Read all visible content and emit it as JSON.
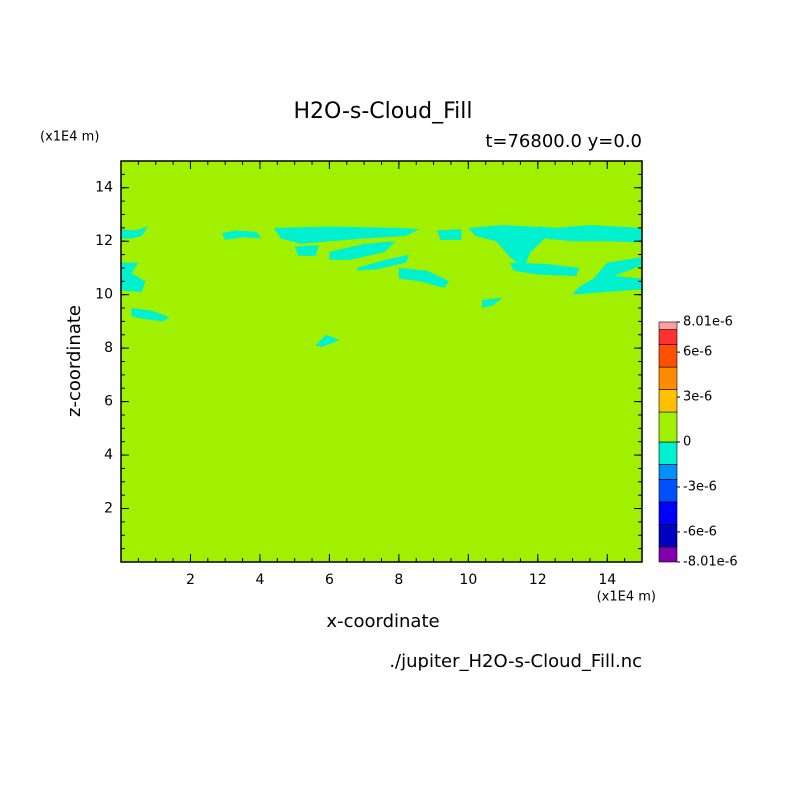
{
  "chart_data": {
    "type": "contour",
    "title": "H2O-s-Cloud_Fill",
    "subtitle": "t=76800.0 y=0.0",
    "x_label": "x-coordinate",
    "y_label": "z-coordinate",
    "x_unit": "(x1E4 m)",
    "y_unit": "(x1E4 m)",
    "source": "./jupiter_H2O-s-Cloud_Fill.nc",
    "xlim": [
      0,
      15
    ],
    "ylim": [
      0,
      15
    ],
    "xticks": [
      2,
      4,
      6,
      8,
      10,
      12,
      14
    ],
    "yticks": [
      2,
      4,
      6,
      8,
      10,
      12,
      14
    ],
    "background_color": "#a0f000",
    "region_color": "#00f0d0",
    "regions": [
      {
        "x": [
          0,
          0,
          0.4,
          0.77,
          0.6,
          0.3
        ],
        "z": [
          12.1,
          12.45,
          12.4,
          12.55,
          12.2,
          12.1
        ]
      },
      {
        "x": [
          2.9,
          3.3,
          3.9,
          4.05,
          3.5,
          3.0
        ],
        "z": [
          12.3,
          12.4,
          12.35,
          12.1,
          12.15,
          12.05
        ]
      },
      {
        "x": [
          4.4,
          6,
          8,
          8.6,
          8.2,
          7,
          6,
          5.2,
          4.6
        ],
        "z": [
          12.5,
          12.55,
          12.5,
          12.45,
          12.2,
          12.1,
          12.0,
          11.9,
          12.1
        ]
      },
      {
        "x": [
          5.0,
          5.7,
          5.6,
          5.1
        ],
        "z": [
          11.8,
          11.85,
          11.45,
          11.45
        ]
      },
      {
        "x": [
          6.0,
          7.0,
          7.9,
          7.6,
          6.6,
          6.0
        ],
        "z": [
          11.6,
          11.9,
          12.0,
          11.6,
          11.3,
          11.3
        ]
      },
      {
        "x": [
          6.8,
          7.6,
          8.3,
          8.2,
          7.4,
          6.8
        ],
        "z": [
          11.0,
          11.3,
          11.5,
          11.2,
          10.95,
          10.9
        ]
      },
      {
        "x": [
          8.0,
          8.8,
          9.45,
          9.3,
          8.6,
          8.0
        ],
        "z": [
          11.0,
          10.9,
          10.5,
          10.25,
          10.5,
          10.6
        ]
      },
      {
        "x": [
          9.1,
          9.8,
          9.8,
          9.2
        ],
        "z": [
          12.4,
          12.45,
          12.05,
          12.05
        ]
      },
      {
        "x": [
          10.0,
          11,
          12.5,
          13.5,
          15,
          15,
          14,
          13,
          12.2,
          11.8,
          11.6,
          11.2,
          10.8,
          10.2
        ],
        "z": [
          12.5,
          12.6,
          12.5,
          12.6,
          12.5,
          11.95,
          12.0,
          12.0,
          12.1,
          11.6,
          11.0,
          11.4,
          12.0,
          12.2
        ]
      },
      {
        "x": [
          11.2,
          12.2,
          13.2,
          13.1,
          12.0,
          11.3
        ],
        "z": [
          11.2,
          11.15,
          11.0,
          10.7,
          10.75,
          10.9
        ]
      },
      {
        "x": [
          13.0,
          15,
          15,
          14.2,
          15,
          15,
          14.0,
          13.6,
          13.2
        ],
        "z": [
          10.0,
          10.2,
          10.6,
          10.7,
          11.1,
          11.4,
          11.2,
          10.6,
          10.3
        ]
      },
      {
        "x": [
          0,
          0.5,
          0.3,
          0.7,
          0.6,
          0
        ],
        "z": [
          11.2,
          11.2,
          10.8,
          10.5,
          10.1,
          10.15
        ]
      },
      {
        "x": [
          0.3,
          0.9,
          1.4,
          1.2,
          0.6,
          0.3
        ],
        "z": [
          9.5,
          9.4,
          9.15,
          9.0,
          9.1,
          9.2
        ]
      },
      {
        "x": [
          5.6,
          5.9,
          6.3,
          6.1,
          5.8
        ],
        "z": [
          8.1,
          8.5,
          8.3,
          8.2,
          8.05
        ]
      },
      {
        "x": [
          10.4,
          10.4,
          11.0,
          10.7
        ],
        "z": [
          9.5,
          9.8,
          9.9,
          9.6
        ]
      },
      {
        "x": [
          12.0,
          12.5,
          12.4,
          12.1
        ],
        "z": [
          12.55,
          12.5,
          12.05,
          12.3
        ]
      }
    ],
    "colorbar": {
      "boundaries": [
        -8.01e-06,
        -7e-06,
        -5.5e-06,
        -4e-06,
        -2.5e-06,
        -1.5e-06,
        0,
        2e-06,
        3.5e-06,
        5e-06,
        6.5e-06,
        7.5e-06,
        8.01e-06
      ],
      "colors": [
        "#8000b0",
        "#0000c0",
        "#0000ff",
        "#0050ff",
        "#0090ff",
        "#00f0d0",
        "#a0f000",
        "#ffc000",
        "#ff8c00",
        "#ff5000",
        "#ff3030",
        "#ffa0a0"
      ],
      "ticks": [
        {
          "value": 8.01e-06,
          "label": "8.01e-6"
        },
        {
          "value": 6e-06,
          "label": "6e-6"
        },
        {
          "value": 3e-06,
          "label": "3e-6"
        },
        0,
        {
          "value": -3e-06,
          "label": "-3e-6"
        },
        {
          "value": -6e-06,
          "label": "-6e-6"
        },
        {
          "value": -8.01e-06,
          "label": "-8.01e-6"
        }
      ]
    }
  }
}
